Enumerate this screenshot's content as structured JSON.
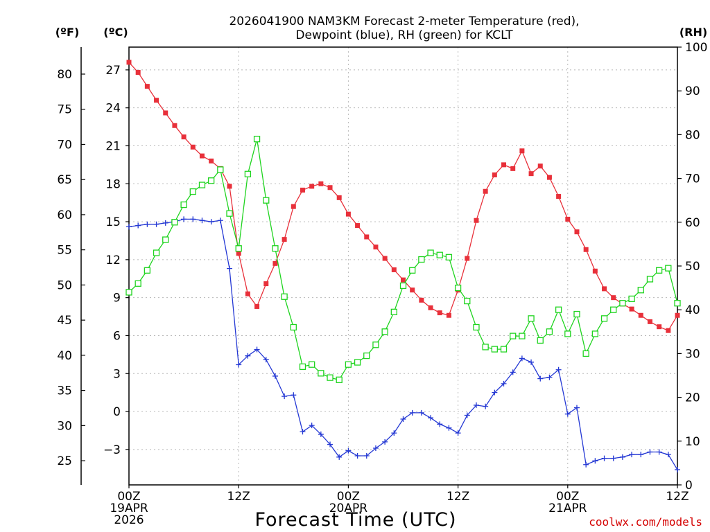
{
  "chart_data": {
    "type": "line",
    "title": [
      "2026041900 NAM3KM Forecast 2-meter Temperature (red),",
      "Dewpoint (blue), RH (green) for KCLT"
    ],
    "xlabel": "Forecast Time (UTC)",
    "credit": "coolwx.com/models",
    "units": {
      "fahrenheit": "(ºF)",
      "celsius": "(ºC)",
      "rh": "(RH)"
    },
    "x_hours_range": [
      0,
      60
    ],
    "x_ticks": [
      {
        "hour": 0,
        "lines": [
          "00Z",
          "19APR",
          "2026"
        ]
      },
      {
        "hour": 12,
        "lines": [
          "12Z"
        ]
      },
      {
        "hour": 24,
        "lines": [
          "00Z",
          "20APR"
        ]
      },
      {
        "hour": 36,
        "lines": [
          "12Z"
        ]
      },
      {
        "hour": 48,
        "lines": [
          "00Z",
          "21APR"
        ]
      },
      {
        "hour": 60,
        "lines": [
          "12Z"
        ]
      }
    ],
    "y_celsius": {
      "range": [
        -5.8,
        28.8
      ],
      "ticks": [
        "27",
        "24",
        "21",
        "18",
        "15",
        "12",
        "9",
        "6",
        "3",
        "0",
        "−3"
      ],
      "tick_values": [
        27,
        24,
        21,
        18,
        15,
        12,
        9,
        6,
        3,
        0,
        -3
      ]
    },
    "y_fahrenheit": {
      "ticks": [
        "80",
        "75",
        "70",
        "65",
        "60",
        "55",
        "50",
        "45",
        "40",
        "35",
        "30",
        "25"
      ],
      "tick_values": [
        80,
        75,
        70,
        65,
        60,
        55,
        50,
        45,
        40,
        35,
        30,
        25
      ]
    },
    "y_rh": {
      "range": [
        0,
        100
      ],
      "ticks": [
        "100",
        "90",
        "80",
        "70",
        "60",
        "50",
        "40",
        "30",
        "20",
        "10",
        "0"
      ],
      "tick_values": [
        100,
        90,
        80,
        70,
        60,
        50,
        40,
        30,
        20,
        10,
        0
      ]
    },
    "series": [
      {
        "name": "2-meter Temperature",
        "axis": "celsius",
        "color": "#e8303a",
        "marker": "filled-square",
        "x": [
          0,
          1,
          2,
          3,
          4,
          5,
          6,
          7,
          8,
          9,
          10,
          11,
          12,
          13,
          14,
          15,
          16,
          17,
          18,
          19,
          20,
          21,
          22,
          23,
          24,
          25,
          26,
          27,
          28,
          29,
          30,
          31,
          32,
          33,
          34,
          35,
          36,
          37,
          38,
          39,
          40,
          41,
          42,
          43,
          44,
          45,
          46,
          47,
          48,
          49,
          50,
          51,
          52,
          53,
          54,
          55,
          56,
          57,
          58,
          59,
          60
        ],
        "values": [
          27.6,
          26.8,
          25.7,
          24.6,
          23.6,
          22.6,
          21.7,
          20.9,
          20.2,
          19.8,
          19.2,
          17.8,
          12.5,
          9.3,
          8.3,
          10.1,
          11.7,
          13.6,
          16.2,
          17.5,
          17.8,
          18.0,
          17.7,
          16.9,
          15.6,
          14.7,
          13.8,
          13.0,
          12.1,
          11.2,
          10.4,
          9.6,
          8.8,
          8.2,
          7.8,
          7.6,
          9.6,
          12.1,
          15.1,
          17.4,
          18.7,
          19.5,
          19.2,
          20.6,
          18.8,
          19.4,
          18.5,
          17.0,
          15.2,
          14.2,
          12.8,
          11.1,
          9.7,
          9.0,
          8.5,
          8.1,
          7.6,
          7.1,
          6.7,
          6.4,
          7.6
        ]
      },
      {
        "name": "Dewpoint",
        "axis": "celsius",
        "color": "#2438d4",
        "marker": "plus",
        "x": [
          0,
          1,
          2,
          3,
          4,
          5,
          6,
          7,
          8,
          9,
          10,
          11,
          12,
          13,
          14,
          15,
          16,
          17,
          18,
          19,
          20,
          21,
          22,
          23,
          24,
          25,
          26,
          27,
          28,
          29,
          30,
          31,
          32,
          33,
          34,
          35,
          36,
          37,
          38,
          39,
          40,
          41,
          42,
          43,
          44,
          45,
          46,
          47,
          48,
          49,
          50,
          51,
          52,
          53,
          54,
          55,
          56,
          57,
          58,
          59,
          60
        ],
        "values": [
          14.6,
          14.7,
          14.8,
          14.8,
          14.9,
          15.0,
          15.2,
          15.2,
          15.1,
          15.0,
          15.1,
          11.3,
          3.7,
          4.4,
          4.9,
          4.1,
          2.8,
          1.2,
          1.3,
          -1.6,
          -1.1,
          -1.8,
          -2.6,
          -3.6,
          -3.1,
          -3.5,
          -3.5,
          -2.9,
          -2.4,
          -1.7,
          -0.6,
          -0.1,
          -0.1,
          -0.5,
          -1.0,
          -1.3,
          -1.7,
          -0.3,
          0.5,
          0.4,
          1.5,
          2.2,
          3.1,
          4.2,
          3.9,
          2.6,
          2.7,
          3.3,
          -0.2,
          0.3,
          -4.2,
          -3.9,
          -3.7,
          -3.7,
          -3.6,
          -3.4,
          -3.4,
          -3.2,
          -3.2,
          -3.4,
          -4.6
        ]
      },
      {
        "name": "RH",
        "axis": "rh",
        "color": "#1fd41f",
        "marker": "open-square",
        "x": [
          0,
          1,
          2,
          3,
          4,
          5,
          6,
          7,
          8,
          9,
          10,
          11,
          12,
          13,
          14,
          15,
          16,
          17,
          18,
          19,
          20,
          21,
          22,
          23,
          24,
          25,
          26,
          27,
          28,
          29,
          30,
          31,
          32,
          33,
          34,
          35,
          36,
          37,
          38,
          39,
          40,
          41,
          42,
          43,
          44,
          45,
          46,
          47,
          48,
          49,
          50,
          51,
          52,
          53,
          54,
          55,
          56,
          57,
          58,
          59,
          60
        ],
        "values": [
          44,
          46,
          49,
          53,
          56,
          60,
          64,
          67,
          68.5,
          69.5,
          72,
          62,
          54,
          71,
          79,
          65,
          54,
          43,
          36,
          27,
          27.5,
          25.5,
          24.5,
          24,
          27.5,
          28,
          29.5,
          32,
          35,
          39.5,
          45.5,
          49,
          51.5,
          53,
          52.5,
          52,
          45,
          42,
          36,
          31.5,
          31,
          31,
          34,
          34,
          38,
          33,
          35,
          40,
          34.5,
          39,
          30,
          34.5,
          38,
          40,
          41.5,
          42.5,
          44.5,
          47,
          49,
          49.5,
          41.5
        ]
      }
    ]
  }
}
